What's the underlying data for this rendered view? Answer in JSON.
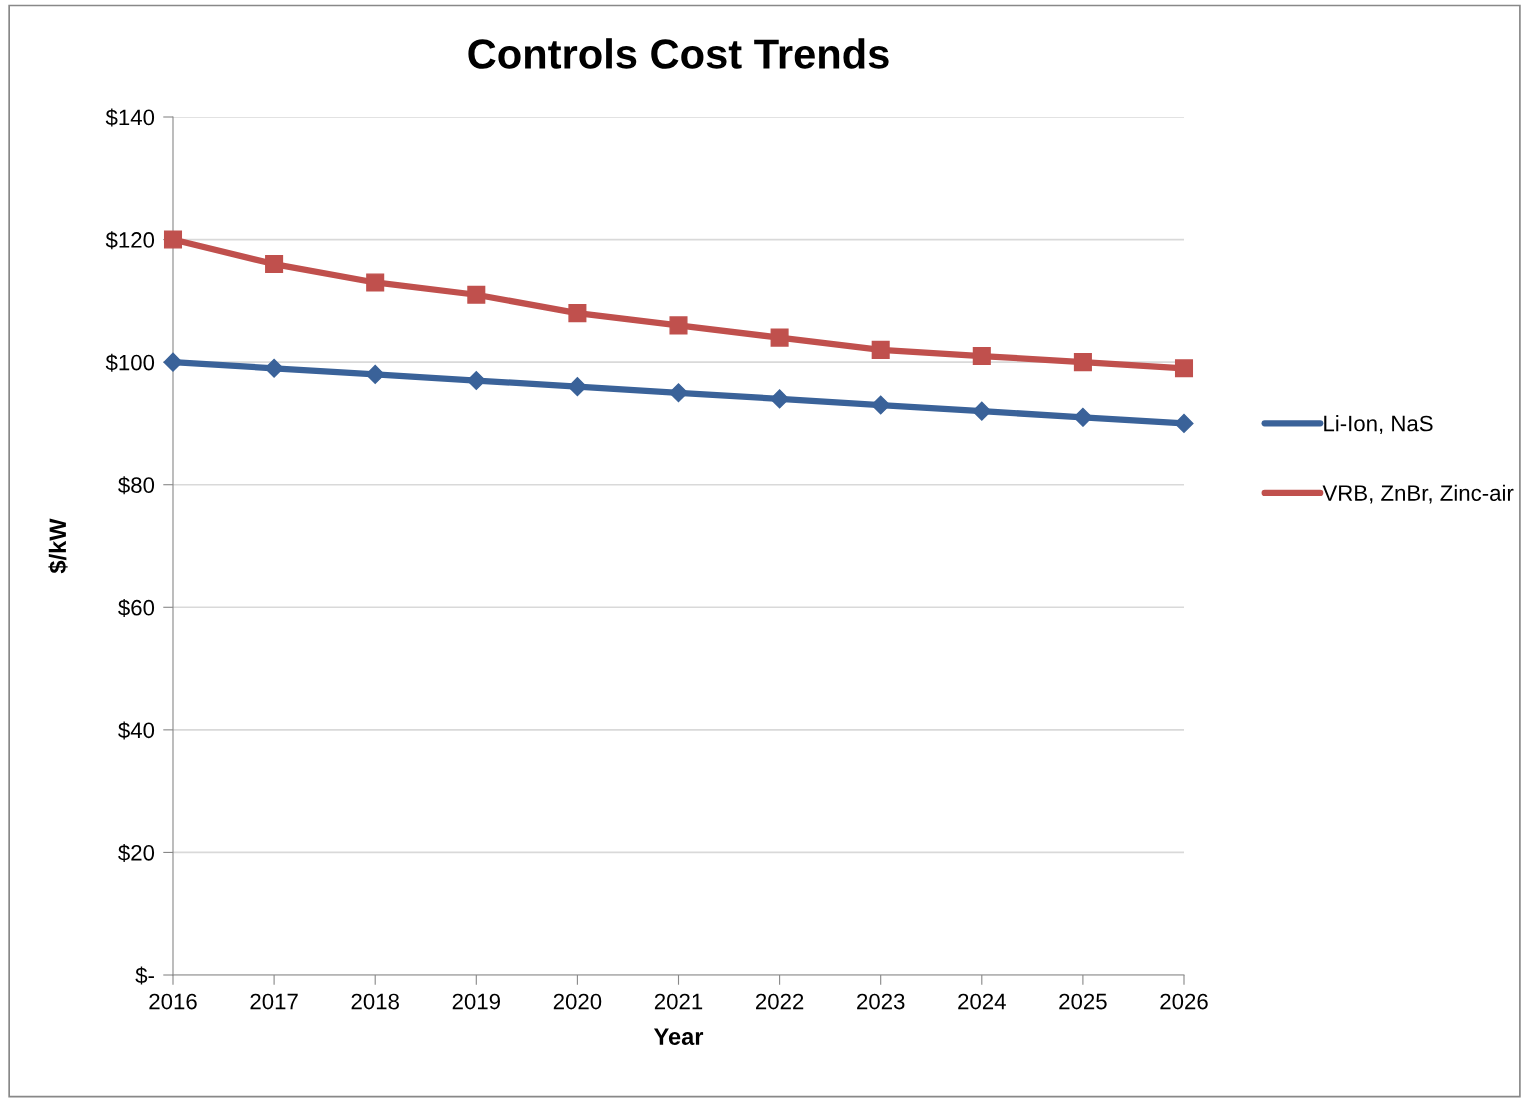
{
  "chart_data": {
    "type": "line",
    "title": "Controls Cost Trends",
    "xlabel": "Year",
    "ylabel": "$/kW",
    "x": [
      2016,
      2017,
      2018,
      2019,
      2020,
      2021,
      2022,
      2023,
      2024,
      2025,
      2026
    ],
    "series": [
      {
        "name": "Li-Ion, NaS",
        "color": "#3a6299",
        "marker": "diamond",
        "values": [
          100,
          99,
          98,
          97,
          96,
          95,
          94,
          93,
          92,
          91,
          90
        ]
      },
      {
        "name": "VRB, ZnBr, Zinc-air",
        "color": "#c0504d",
        "marker": "square",
        "values": [
          120,
          116,
          113,
          111,
          108,
          106,
          104,
          102,
          101,
          100,
          99
        ]
      }
    ],
    "xlim": [
      2016,
      2026
    ],
    "xticks": [
      2016,
      2017,
      2018,
      2019,
      2020,
      2021,
      2022,
      2023,
      2024,
      2025,
      2026
    ],
    "ylim": [
      0,
      140
    ],
    "yticks": [
      {
        "value": 0,
        "label": "$-"
      },
      {
        "value": 20,
        "label": "$20"
      },
      {
        "value": 40,
        "label": "$40"
      },
      {
        "value": 60,
        "label": "$60"
      },
      {
        "value": 80,
        "label": "$80"
      },
      {
        "value": 100,
        "label": "$100"
      },
      {
        "value": 120,
        "label": "$120"
      },
      {
        "value": 140,
        "label": "$140"
      }
    ],
    "grid": "y",
    "legend": "right",
    "line_style": "solid"
  }
}
